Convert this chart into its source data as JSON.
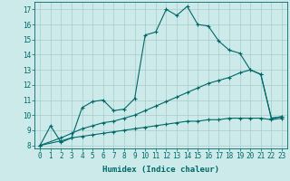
{
  "bg_color": "#cceaea",
  "grid_color": "#aacaca",
  "line_color": "#006868",
  "xlabel": "Humidex (Indice chaleur)",
  "xlim": [
    -0.5,
    23.5
  ],
  "ylim": [
    7.8,
    17.5
  ],
  "yticks": [
    8,
    9,
    10,
    11,
    12,
    13,
    14,
    15,
    16,
    17
  ],
  "xticks": [
    0,
    1,
    2,
    3,
    4,
    5,
    6,
    7,
    8,
    9,
    10,
    11,
    12,
    13,
    14,
    15,
    16,
    17,
    18,
    19,
    20,
    21,
    22,
    23
  ],
  "series": [
    {
      "x": [
        0,
        1,
        2,
        3,
        4,
        5,
        6,
        7,
        8,
        9,
        10,
        11,
        12,
        13,
        14,
        15,
        16,
        17,
        18,
        19,
        20,
        21,
        22,
        23
      ],
      "y": [
        8.0,
        9.3,
        8.2,
        8.5,
        10.5,
        10.9,
        11.0,
        10.3,
        10.4,
        11.1,
        15.3,
        15.5,
        17.0,
        16.6,
        17.2,
        16.0,
        15.9,
        14.9,
        14.3,
        14.1,
        13.0,
        12.7,
        9.8,
        9.9
      ]
    },
    {
      "x": [
        0,
        2,
        3,
        4,
        5,
        6,
        7,
        8,
        9,
        10,
        11,
        12,
        13,
        14,
        15,
        16,
        17,
        18,
        19,
        20,
        21,
        22,
        23
      ],
      "y": [
        8.0,
        8.5,
        8.8,
        9.1,
        9.3,
        9.5,
        9.6,
        9.8,
        10.0,
        10.3,
        10.6,
        10.9,
        11.2,
        11.5,
        11.8,
        12.1,
        12.3,
        12.5,
        12.8,
        13.0,
        12.7,
        9.8,
        9.9
      ]
    },
    {
      "x": [
        0,
        2,
        3,
        4,
        5,
        6,
        7,
        8,
        9,
        10,
        11,
        12,
        13,
        14,
        15,
        16,
        17,
        18,
        19,
        20,
        21,
        22,
        23
      ],
      "y": [
        8.0,
        8.3,
        8.5,
        8.6,
        8.7,
        8.8,
        8.9,
        9.0,
        9.1,
        9.2,
        9.3,
        9.4,
        9.5,
        9.6,
        9.6,
        9.7,
        9.7,
        9.8,
        9.8,
        9.8,
        9.8,
        9.7,
        9.8
      ]
    }
  ]
}
